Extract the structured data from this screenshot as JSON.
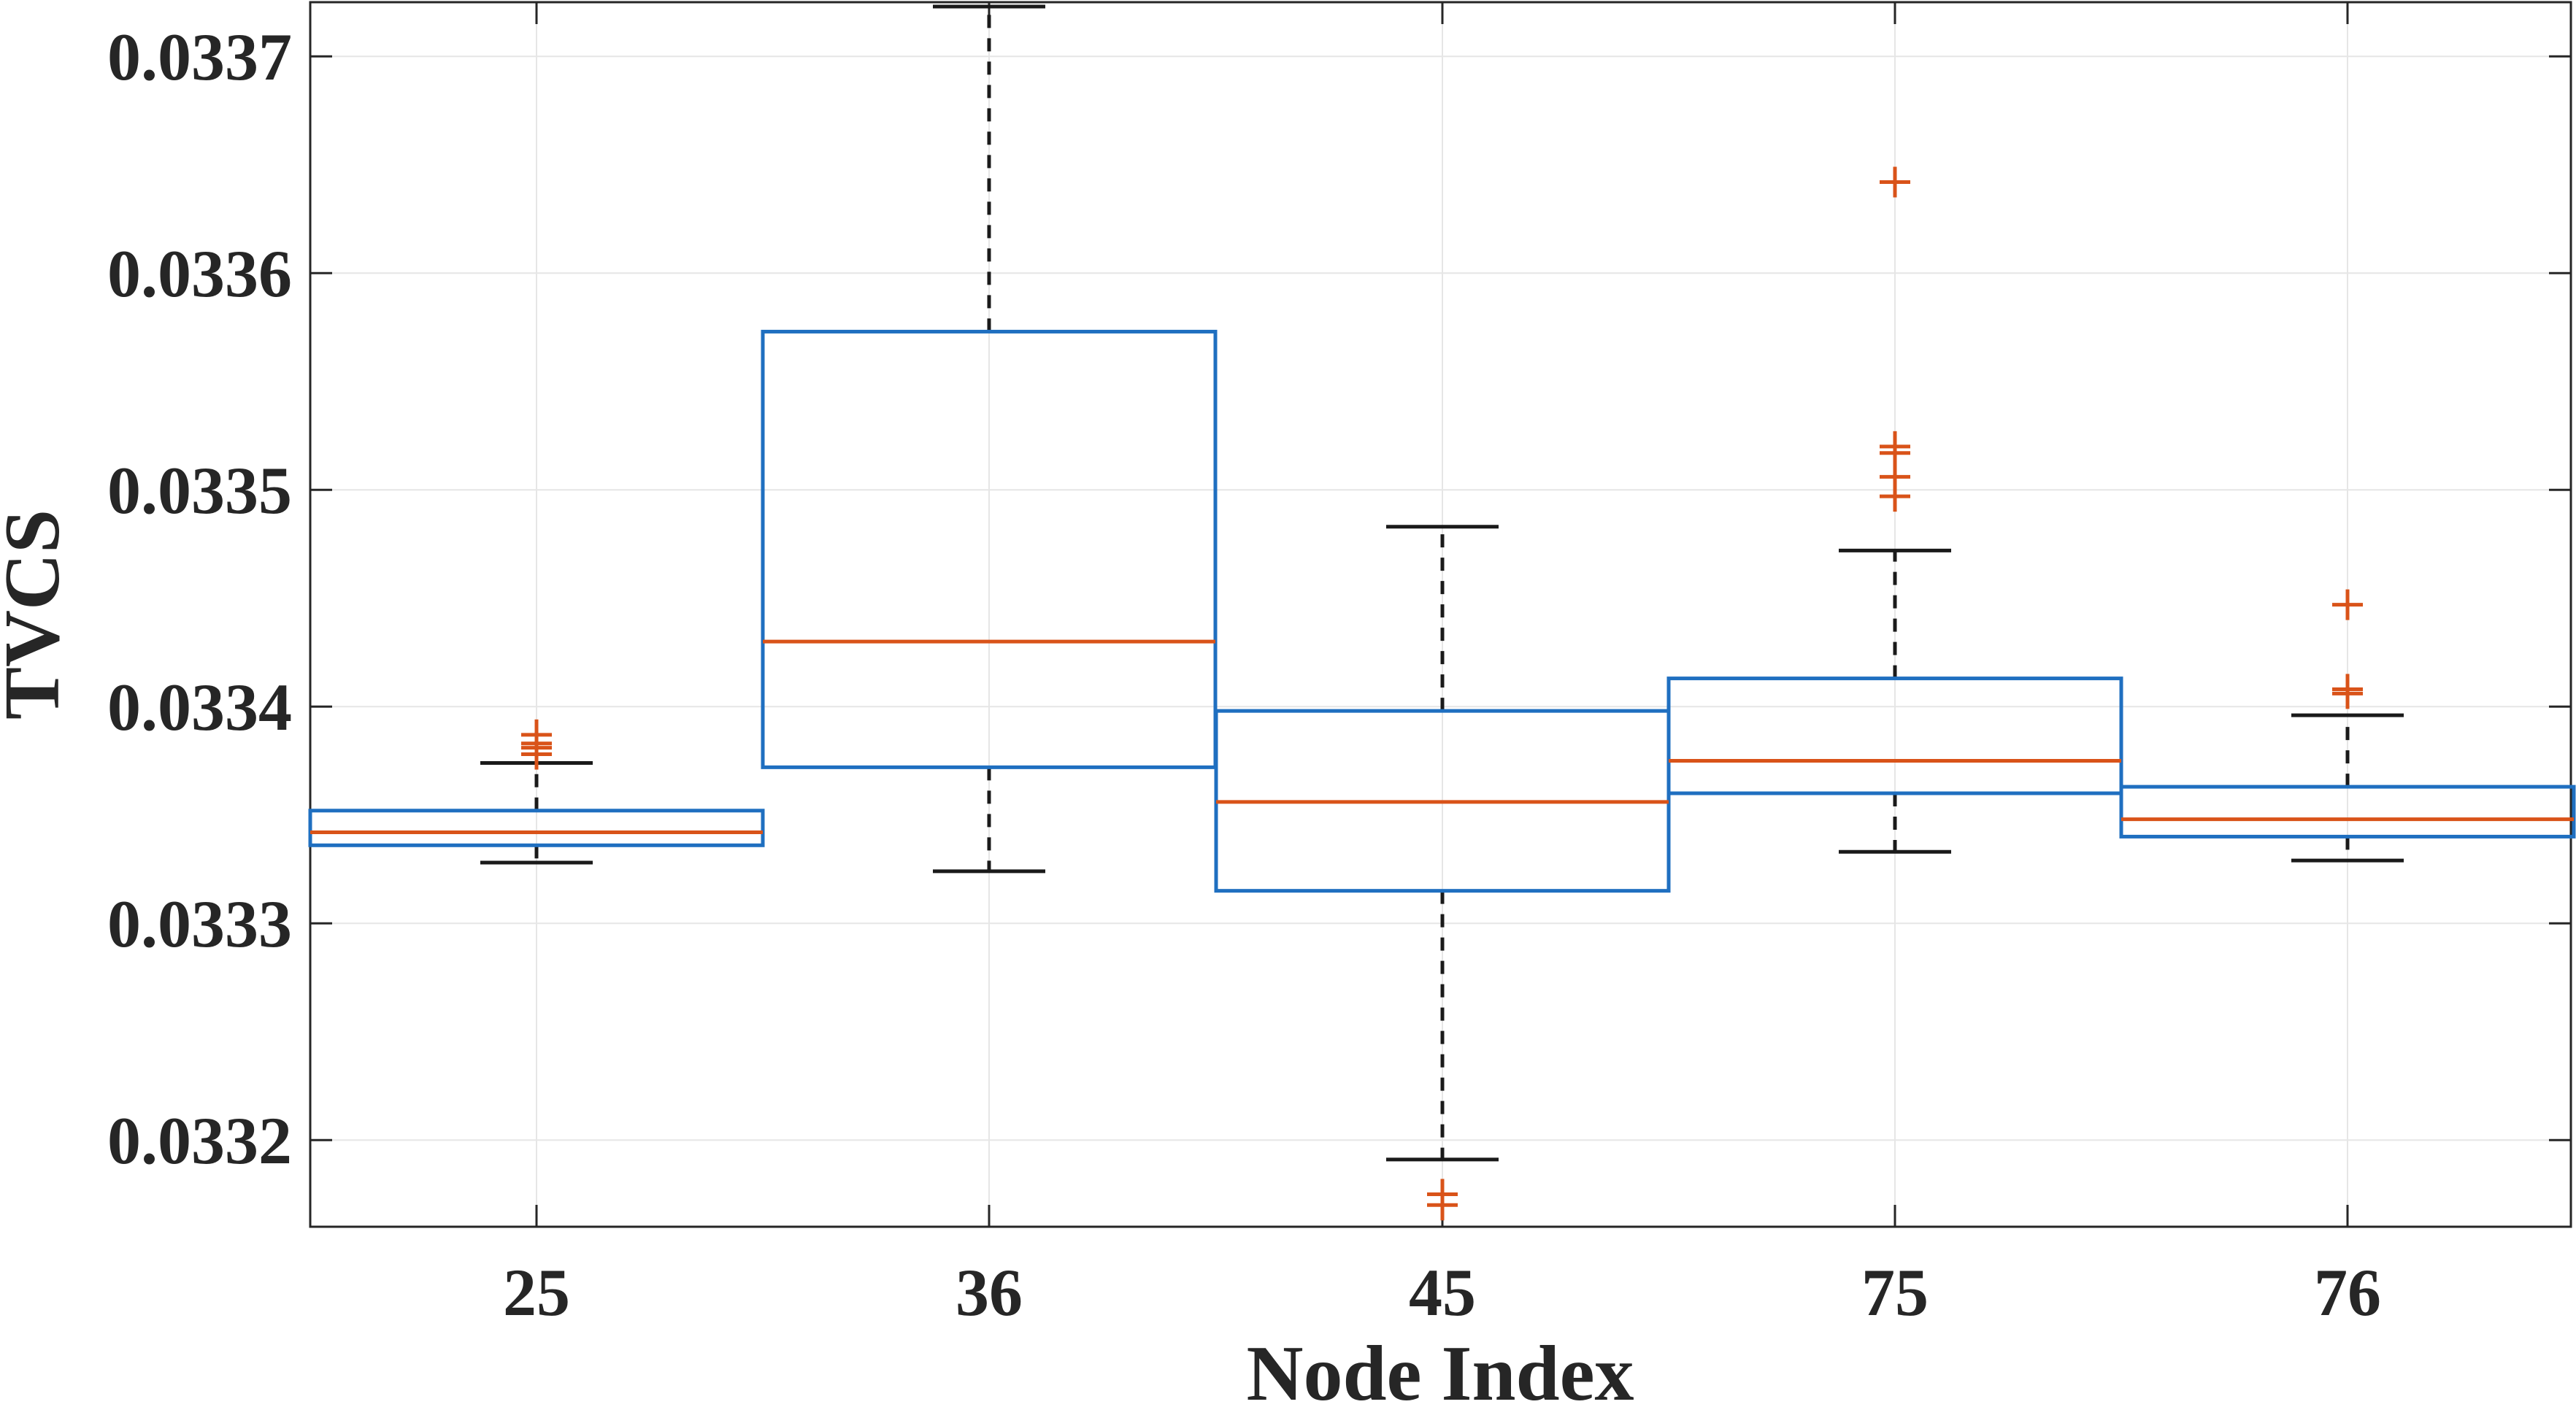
{
  "chart_data": {
    "type": "box",
    "title": "",
    "xlabel": "Node Index",
    "ylabel": "TVCS",
    "categories": [
      "25",
      "36",
      "45",
      "75",
      "76"
    ],
    "ylim": [
      0.03316,
      0.033725
    ],
    "yticks": [
      0.0332,
      0.0333,
      0.0334,
      0.0335,
      0.0336,
      0.0337
    ],
    "ytick_labels": [
      "0.0332",
      "0.0333",
      "0.0334",
      "0.0335",
      "0.0336",
      "0.0337"
    ],
    "grid": true,
    "colors": {
      "box": "#1f6fc0",
      "median": "#d95319",
      "whisker": "#1a1a1a",
      "outlier": "#d95319",
      "grid": "#e6e6e6",
      "axis": "#262626"
    },
    "boxes": [
      {
        "label": "25",
        "whisker_low": 0.033328,
        "q1": 0.033336,
        "median": 0.033342,
        "q3": 0.033352,
        "whisker_high": 0.033374,
        "outliers": [
          0.033378,
          0.033381,
          0.033383,
          0.033387
        ]
      },
      {
        "label": "36",
        "whisker_low": 0.033324,
        "q1": 0.033372,
        "median": 0.03343,
        "q3": 0.033573,
        "whisker_high": 0.033723,
        "outliers": []
      },
      {
        "label": "45",
        "whisker_low": 0.033191,
        "q1": 0.033315,
        "median": 0.033356,
        "q3": 0.033398,
        "whisker_high": 0.033483,
        "outliers": [
          0.03317,
          0.033175
        ]
      },
      {
        "label": "75",
        "whisker_low": 0.033333,
        "q1": 0.03336,
        "median": 0.033375,
        "q3": 0.033413,
        "whisker_high": 0.033472,
        "outliers": [
          0.033497,
          0.033506,
          0.033517,
          0.03352,
          0.033642
        ]
      },
      {
        "label": "76",
        "whisker_low": 0.033329,
        "q1": 0.03334,
        "median": 0.033348,
        "q3": 0.033363,
        "whisker_high": 0.033396,
        "outliers": [
          0.033406,
          0.033408,
          0.033447
        ]
      }
    ]
  }
}
